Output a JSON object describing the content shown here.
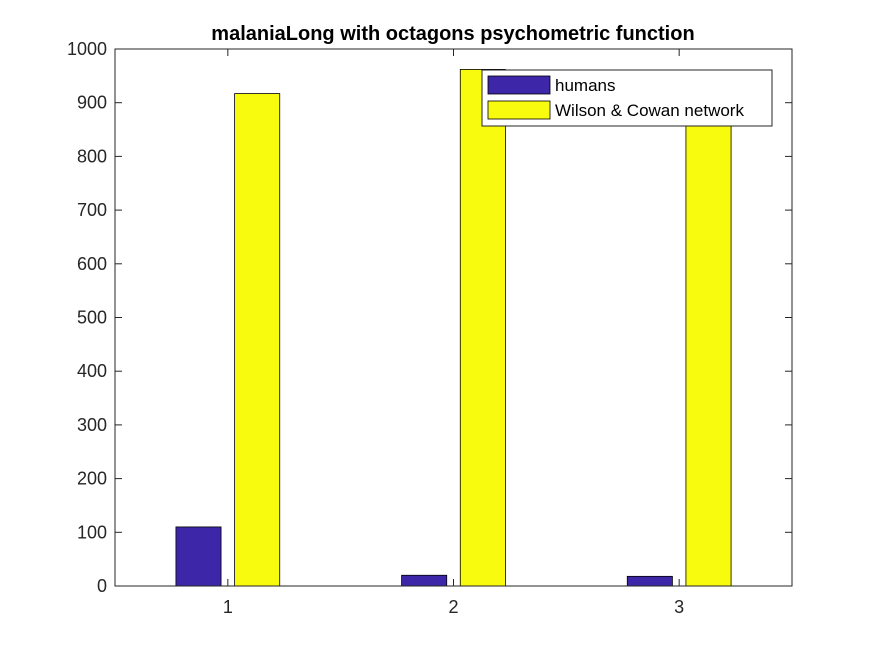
{
  "chart_data": {
    "type": "bar",
    "title": "malaniaLong with octagons psychometric function",
    "xlabel": "",
    "ylabel": "",
    "categories": [
      "1",
      "2",
      "3"
    ],
    "ylim": [
      0,
      1000
    ],
    "yticks": [
      "0",
      "100",
      "200",
      "300",
      "400",
      "500",
      "600",
      "700",
      "800",
      "900",
      "1000"
    ],
    "series": [
      {
        "name": "humans",
        "values": [
          110,
          20,
          18
        ],
        "color": "#3e26a8"
      },
      {
        "name": "Wilson & Cowan network",
        "values": [
          917,
          962,
          900
        ],
        "color": "#f9fb0e"
      }
    ],
    "legend_position": "top-right",
    "grid": false
  }
}
